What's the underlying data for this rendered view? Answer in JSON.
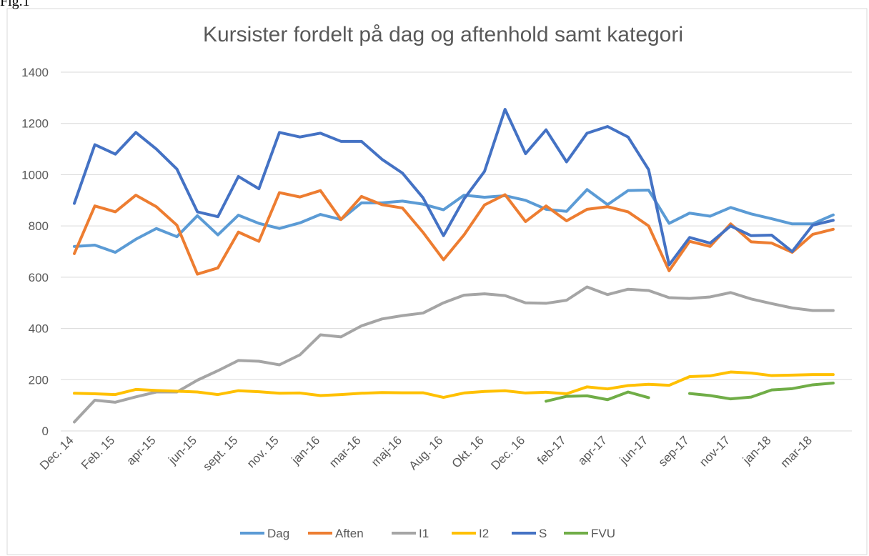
{
  "figure_label": "Fig.1",
  "chart_data": {
    "type": "line",
    "title": "Kursister fordelt på dag og aftenhold samt kategori",
    "categories": [
      "Dec. 14",
      null,
      "Feb. 15",
      null,
      "apr-15",
      null,
      "jun-15",
      null,
      "sept. 15",
      null,
      "nov. 15",
      null,
      "jan-16",
      null,
      "mar-16",
      null,
      "maj-16",
      null,
      "Aug. 16",
      null,
      "Okt. 16",
      null,
      "Dec. 16",
      null,
      "feb-17",
      null,
      "apr-17",
      null,
      "jun-17",
      null,
      "sep-17",
      null,
      "nov-17",
      null,
      "jan-18",
      null,
      "mar-18",
      null
    ],
    "series": [
      {
        "name": "Dag",
        "color": "#5b9bd5",
        "values": [
          720,
          725,
          697,
          748,
          790,
          758,
          840,
          765,
          842,
          810,
          790,
          812,
          845,
          825,
          890,
          890,
          897,
          885,
          863,
          920,
          912,
          918,
          900,
          865,
          857,
          942,
          883,
          938,
          940,
          810,
          850,
          838,
          872,
          847,
          828,
          808,
          808,
          843
        ]
      },
      {
        "name": "Aften",
        "color": "#ed7d31",
        "values": [
          692,
          878,
          855,
          920,
          875,
          803,
          612,
          636,
          776,
          740,
          930,
          913,
          938,
          825,
          915,
          883,
          870,
          775,
          668,
          765,
          882,
          922,
          817,
          878,
          820,
          865,
          875,
          855,
          800,
          625,
          740,
          720,
          808,
          738,
          733,
          697,
          767,
          787
        ]
      },
      {
        "name": "I1",
        "color": "#a5a5a5",
        "values": [
          35,
          120,
          112,
          133,
          152,
          152,
          198,
          235,
          275,
          272,
          258,
          297,
          375,
          367,
          410,
          437,
          450,
          460,
          500,
          530,
          535,
          528,
          500,
          498,
          510,
          562,
          532,
          553,
          548,
          520,
          517,
          523,
          540,
          515,
          497,
          480,
          470,
          470
        ]
      },
      {
        "name": "I2",
        "color": "#ffc000",
        "values": [
          147,
          145,
          142,
          162,
          158,
          155,
          152,
          142,
          157,
          153,
          147,
          148,
          138,
          142,
          147,
          150,
          149,
          149,
          131,
          148,
          154,
          157,
          148,
          151,
          145,
          172,
          164,
          177,
          182,
          178,
          212,
          215,
          230,
          226,
          216,
          218,
          220,
          220
        ]
      },
      {
        "name": "S",
        "color": "#4472c4",
        "values": [
          888,
          1117,
          1080,
          1165,
          1100,
          1022,
          855,
          836,
          993,
          945,
          1165,
          1147,
          1162,
          1130,
          1130,
          1060,
          1006,
          910,
          762,
          905,
          1013,
          1255,
          1082,
          1175,
          1050,
          1162,
          1188,
          1147,
          1020,
          648,
          755,
          733,
          800,
          762,
          764,
          700,
          803,
          822
        ]
      },
      {
        "name": "FVU",
        "color": "#70ad47",
        "values": [
          null,
          null,
          null,
          null,
          null,
          null,
          null,
          null,
          null,
          null,
          null,
          null,
          null,
          null,
          null,
          null,
          null,
          null,
          null,
          null,
          null,
          null,
          null,
          116,
          135,
          137,
          122,
          152,
          130,
          null,
          146,
          138,
          125,
          132,
          160,
          165,
          180,
          187
        ]
      }
    ],
    "ylim": [
      0,
      1400
    ],
    "yticks": [
      0,
      200,
      400,
      600,
      800,
      1000,
      1200,
      1400
    ],
    "grid": true,
    "legend": "bottom"
  }
}
